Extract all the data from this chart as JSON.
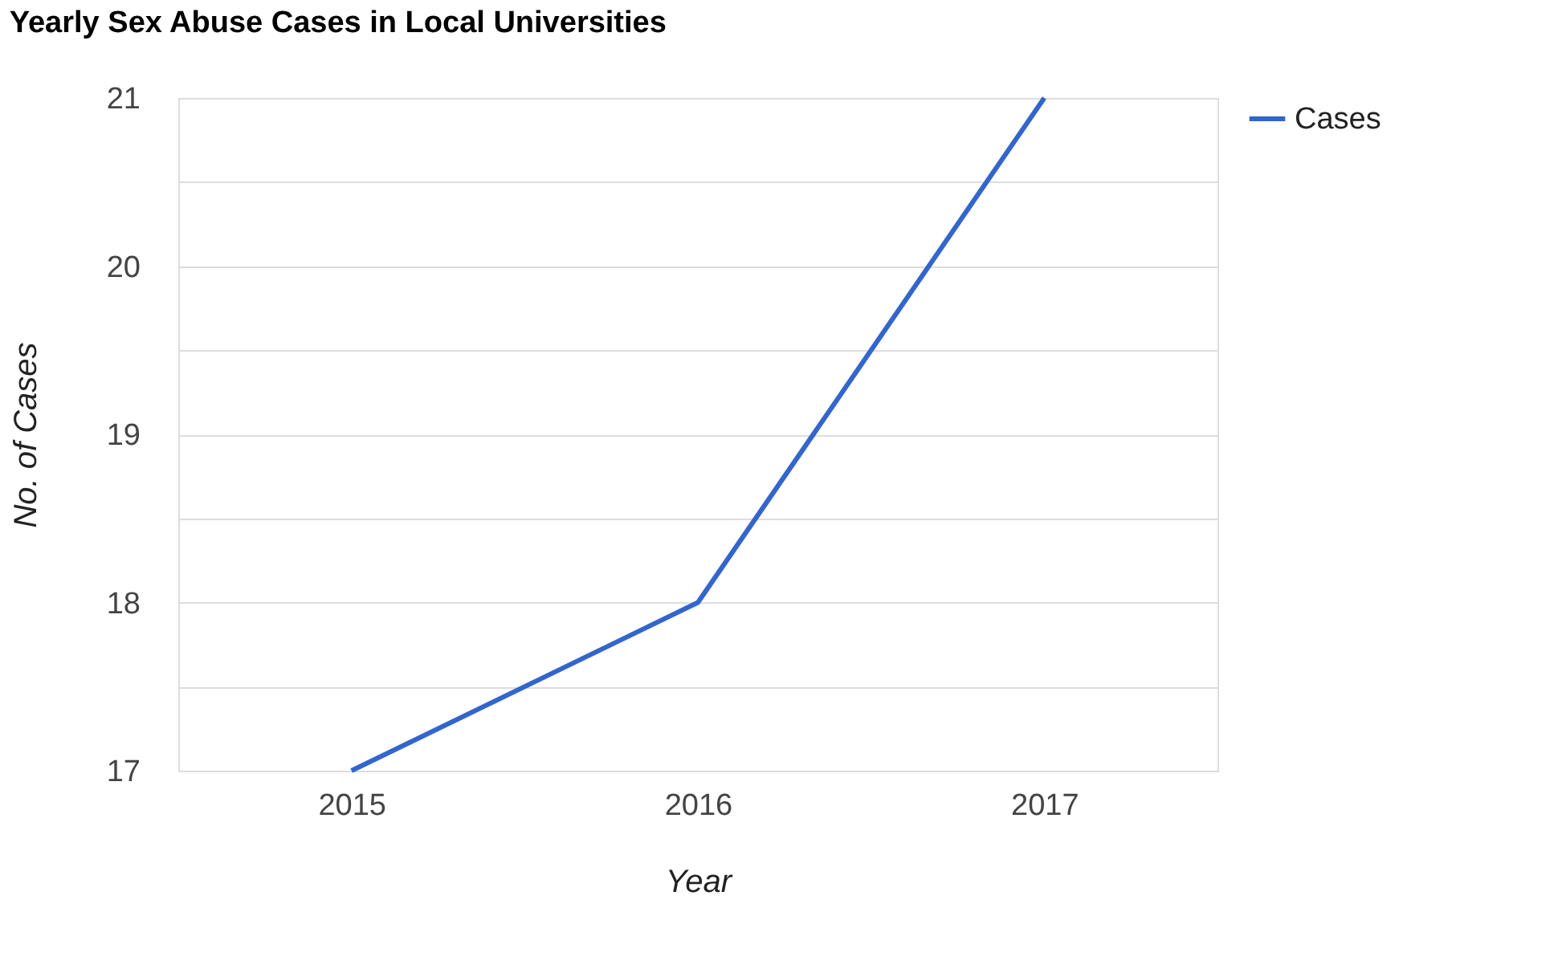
{
  "chart_data": {
    "type": "line",
    "title": "Yearly Sex Abuse Cases in Local Universities",
    "xlabel": "Year",
    "ylabel": "No. of Cases",
    "categories": [
      "2015",
      "2016",
      "2017"
    ],
    "series": [
      {
        "name": "Cases",
        "color": "#3366cc",
        "values": [
          17,
          18,
          21
        ]
      }
    ],
    "ylim": [
      17,
      21
    ],
    "yticks": [
      17,
      {
        "value": 17.5,
        "label": null
      },
      18,
      {
        "value": 18.5,
        "label": null
      },
      19,
      {
        "value": 19.5,
        "label": null
      },
      20,
      {
        "value": 20.5,
        "label": null
      },
      21
    ],
    "grid": "y",
    "legend": "top right",
    "marker": "none",
    "line_style": "solid"
  }
}
